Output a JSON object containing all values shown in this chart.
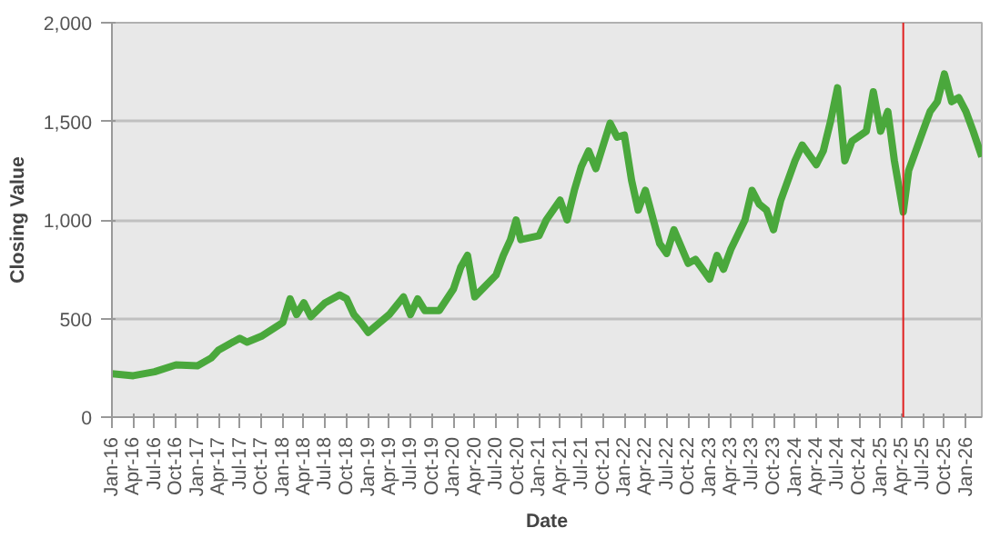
{
  "chart_data": {
    "type": "line",
    "xlabel": "Date",
    "ylabel": "Closing Value",
    "x": [
      "2016-01-01",
      "2016-04-01",
      "2016-07-01",
      "2016-10-01",
      "2017-01-01",
      "2017-03-01",
      "2017-04-01",
      "2017-07-01",
      "2017-08-01",
      "2017-10-01",
      "2018-01-01",
      "2018-02-01",
      "2018-03-01",
      "2018-04-01",
      "2018-05-01",
      "2018-07-01",
      "2018-09-01",
      "2018-10-01",
      "2018-11-01",
      "2018-12-01",
      "2019-01-01",
      "2019-04-01",
      "2019-06-01",
      "2019-07-01",
      "2019-08-01",
      "2019-09-01",
      "2019-11-01",
      "2020-01-01",
      "2020-02-01",
      "2020-03-01",
      "2020-04-01",
      "2020-07-01",
      "2020-08-01",
      "2020-09-01",
      "2020-09-25",
      "2020-10-15",
      "2021-01-01",
      "2021-02-01",
      "2021-04-01",
      "2021-05-01",
      "2021-06-01",
      "2021-07-01",
      "2021-08-01",
      "2021-09-01",
      "2021-11-01",
      "2021-12-01",
      "2022-01-01",
      "2022-02-01",
      "2022-03-01",
      "2022-04-01",
      "2022-06-01",
      "2022-07-01",
      "2022-08-01",
      "2022-10-01",
      "2022-11-01",
      "2023-01-01",
      "2023-02-01",
      "2023-03-01",
      "2023-04-01",
      "2023-06-01",
      "2023-07-01",
      "2023-08-01",
      "2023-09-01",
      "2023-10-01",
      "2023-11-01",
      "2024-01-01",
      "2024-02-01",
      "2024-04-01",
      "2024-05-01",
      "2024-06-01",
      "2024-07-01",
      "2024-08-01",
      "2024-09-01",
      "2024-11-01",
      "2024-12-01",
      "2025-01-01",
      "2025-02-01",
      "2025-03-01",
      "2025-04-08",
      "2025-05-01",
      "2025-07-01",
      "2025-08-01",
      "2025-09-01",
      "2025-10-01",
      "2025-11-01",
      "2025-12-01",
      "2026-01-01",
      "2026-02-01",
      "2026-03-10"
    ],
    "series": [
      {
        "color": "#4aa83c",
        "values": [
          220,
          210,
          230,
          265,
          260,
          300,
          340,
          400,
          380,
          410,
          480,
          600,
          520,
          580,
          510,
          580,
          620,
          600,
          520,
          480,
          430,
          520,
          610,
          520,
          600,
          540,
          540,
          650,
          760,
          820,
          610,
          720,
          820,
          900,
          1000,
          900,
          920,
          1000,
          1100,
          1000,
          1150,
          1270,
          1350,
          1260,
          1490,
          1420,
          1430,
          1200,
          1050,
          1150,
          880,
          830,
          950,
          780,
          800,
          700,
          820,
          750,
          850,
          1000,
          1150,
          1080,
          1050,
          950,
          1100,
          1300,
          1380,
          1280,
          1350,
          1500,
          1670,
          1300,
          1400,
          1450,
          1650,
          1450,
          1550,
          1300,
          1040,
          1250,
          1450,
          1550,
          1600,
          1740,
          1600,
          1620,
          1550,
          1450,
          1320
        ]
      }
    ],
    "xlim": [
      "2016-01-01",
      "2026-03-10"
    ],
    "xticks": [
      {
        "value": "2016-01-01",
        "label": "Jan-16"
      },
      {
        "value": "2016-04-01",
        "label": "Apr-16"
      },
      {
        "value": "2016-07-01",
        "label": "Jul-16"
      },
      {
        "value": "2016-10-01",
        "label": "Oct-16"
      },
      {
        "value": "2017-01-01",
        "label": "Jan-17"
      },
      {
        "value": "2017-04-01",
        "label": "Apr-17"
      },
      {
        "value": "2017-07-01",
        "label": "Jul-17"
      },
      {
        "value": "2017-10-01",
        "label": "Oct-17"
      },
      {
        "value": "2018-01-01",
        "label": "Jan-18"
      },
      {
        "value": "2018-04-01",
        "label": "Apr-18"
      },
      {
        "value": "2018-07-01",
        "label": "Jul-18"
      },
      {
        "value": "2018-10-01",
        "label": "Oct-18"
      },
      {
        "value": "2019-01-01",
        "label": "Jan-19"
      },
      {
        "value": "2019-04-01",
        "label": "Apr-19"
      },
      {
        "value": "2019-07-01",
        "label": "Jul-19"
      },
      {
        "value": "2019-10-01",
        "label": "Oct-19"
      },
      {
        "value": "2020-01-01",
        "label": "Jan-20"
      },
      {
        "value": "2020-04-01",
        "label": "Apr-20"
      },
      {
        "value": "2020-07-01",
        "label": "Jul-20"
      },
      {
        "value": "2020-10-01",
        "label": "Oct-20"
      },
      {
        "value": "2021-01-01",
        "label": "Jan-21"
      },
      {
        "value": "2021-04-01",
        "label": "Apr-21"
      },
      {
        "value": "2021-07-01",
        "label": "Jul-21"
      },
      {
        "value": "2021-10-01",
        "label": "Oct-21"
      },
      {
        "value": "2022-01-01",
        "label": "Jan-22"
      },
      {
        "value": "2022-04-01",
        "label": "Apr-22"
      },
      {
        "value": "2022-07-01",
        "label": "Jul-22"
      },
      {
        "value": "2022-10-01",
        "label": "Oct-22"
      },
      {
        "value": "2023-01-01",
        "label": "Jan-23"
      },
      {
        "value": "2023-04-01",
        "label": "Apr-23"
      },
      {
        "value": "2023-07-01",
        "label": "Jul-23"
      },
      {
        "value": "2023-10-01",
        "label": "Oct-23"
      },
      {
        "value": "2024-01-01",
        "label": "Jan-24"
      },
      {
        "value": "2024-04-01",
        "label": "Apr-24"
      },
      {
        "value": "2024-07-01",
        "label": "Jul-24"
      },
      {
        "value": "2024-10-01",
        "label": "Oct-24"
      },
      {
        "value": "2025-01-01",
        "label": "Jan-25"
      },
      {
        "value": "2025-04-01",
        "label": "Apr-25"
      },
      {
        "value": "2025-07-01",
        "label": "Jul-25"
      },
      {
        "value": "2025-10-01",
        "label": "Oct-25"
      },
      {
        "value": "2026-01-01",
        "label": "Jan-26"
      }
    ],
    "ylim": [
      0,
      2000
    ],
    "yticks": [
      0,
      500,
      {
        "value": 1000,
        "label": "1,000"
      },
      {
        "value": 1500,
        "label": "1,500"
      },
      {
        "value": 2000,
        "label": "2,000"
      }
    ],
    "grid": "y",
    "ref_lines": [
      {
        "axis": "x",
        "value": "2025-04-08",
        "color": "#e02020"
      }
    ]
  }
}
